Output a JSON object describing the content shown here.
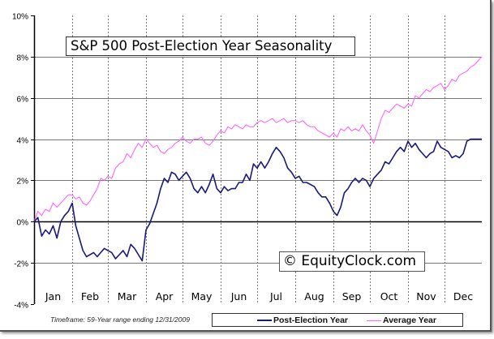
{
  "chart_data": {
    "type": "line",
    "title": "S&P 500 Post-Election Year Seasonality",
    "watermark": "© EquityClock.com",
    "footnote": "Timeframe: 59-Year range ending 12/31/2009",
    "xlabel": "",
    "ylabel": "",
    "ylim": [
      -4,
      10
    ],
    "y_ticks": [
      "10%",
      "8%",
      "6%",
      "4%",
      "2%",
      "0%",
      "-2%",
      "-4%"
    ],
    "y_tick_values": [
      10,
      8,
      6,
      4,
      2,
      0,
      -2,
      -4
    ],
    "categories": [
      "Jan",
      "Feb",
      "Mar",
      "Apr",
      "May",
      "Jun",
      "Jul",
      "Aug",
      "Sep",
      "Oct",
      "Nov",
      "Dec"
    ],
    "grid": {
      "horizontal": true,
      "vertical_dotted_month_separators": true
    },
    "legend_position": "bottom",
    "series": [
      {
        "name": "Post-Election Year",
        "color": "#1a1a7a",
        "x_month_fraction": [
          0,
          0.1,
          0.2,
          0.3,
          0.4,
          0.5,
          0.6,
          0.7,
          0.8,
          0.9,
          1.0,
          1.1,
          1.2,
          1.3,
          1.4,
          1.5,
          1.6,
          1.7,
          1.8,
          1.9,
          2.0,
          2.1,
          2.2,
          2.3,
          2.4,
          2.5,
          2.6,
          2.7,
          2.8,
          2.9,
          3.0,
          3.1,
          3.2,
          3.3,
          3.4,
          3.5,
          3.6,
          3.7,
          3.8,
          3.9,
          4.0,
          4.1,
          4.2,
          4.3,
          4.4,
          4.5,
          4.6,
          4.7,
          4.8,
          4.9,
          5.0,
          5.1,
          5.2,
          5.3,
          5.4,
          5.5,
          5.6,
          5.7,
          5.8,
          5.9,
          6.0,
          6.1,
          6.2,
          6.3,
          6.4,
          6.5,
          6.6,
          6.7,
          6.8,
          6.9,
          7.0,
          7.1,
          7.2,
          7.3,
          7.4,
          7.5,
          7.6,
          7.7,
          7.8,
          7.9,
          8.0,
          8.1,
          8.2,
          8.3,
          8.4,
          8.5,
          8.6,
          8.7,
          8.8,
          8.9,
          9.0,
          9.1,
          9.2,
          9.3,
          9.4,
          9.5,
          9.6,
          9.7,
          9.8,
          9.9,
          10.0,
          10.1,
          10.2,
          10.3,
          10.4,
          10.5,
          10.6,
          10.7,
          10.8,
          10.9,
          11.0,
          11.1,
          11.2,
          11.3,
          11.4,
          11.5,
          11.6,
          11.7,
          11.8,
          11.9,
          12.0
        ],
        "values": [
          0.0,
          0.2,
          -0.7,
          -0.4,
          -0.6,
          -0.2,
          -0.8,
          0.0,
          0.3,
          0.5,
          0.9,
          -0.2,
          -0.8,
          -1.4,
          -1.7,
          -1.6,
          -1.5,
          -1.7,
          -1.5,
          -1.3,
          -1.4,
          -1.5,
          -1.8,
          -1.6,
          -1.4,
          -1.7,
          -1.1,
          -1.3,
          -1.6,
          -1.9,
          -0.4,
          -0.1,
          0.4,
          0.9,
          1.6,
          2.1,
          1.9,
          2.4,
          2.3,
          2.0,
          2.2,
          2.4,
          2.1,
          1.6,
          1.4,
          1.7,
          1.4,
          1.8,
          2.3,
          1.6,
          1.4,
          1.7,
          1.5,
          1.6,
          1.6,
          1.9,
          1.9,
          2.3,
          2.0,
          2.8,
          2.6,
          2.9,
          2.6,
          2.9,
          3.3,
          3.6,
          3.4,
          3.1,
          2.6,
          2.4,
          2.1,
          2.2,
          1.9,
          1.9,
          1.8,
          1.7,
          1.4,
          1.2,
          1.2,
          0.9,
          0.5,
          0.3,
          0.7,
          1.4,
          1.6,
          1.9,
          2.1,
          1.9,
          2.1,
          2.0,
          1.7,
          2.1,
          2.3,
          2.5,
          2.9,
          2.8,
          3.1,
          3.4,
          3.6,
          3.4,
          3.9,
          3.6,
          3.8,
          3.5,
          3.3,
          3.1,
          3.3,
          3.4,
          3.9,
          3.6,
          3.5,
          3.4,
          3.1,
          3.2,
          3.1,
          3.3,
          3.9,
          4.0,
          4.0,
          4.0,
          4.0
        ]
      },
      {
        "name": "Average Year",
        "color": "#ff66ff",
        "x_month_fraction": [
          0,
          0.1,
          0.2,
          0.3,
          0.4,
          0.5,
          0.6,
          0.7,
          0.8,
          0.9,
          1.0,
          1.1,
          1.2,
          1.3,
          1.4,
          1.5,
          1.6,
          1.7,
          1.8,
          1.9,
          2.0,
          2.1,
          2.2,
          2.3,
          2.4,
          2.5,
          2.6,
          2.7,
          2.8,
          2.9,
          3.0,
          3.1,
          3.2,
          3.3,
          3.4,
          3.5,
          3.6,
          3.7,
          3.8,
          3.9,
          4.0,
          4.1,
          4.2,
          4.3,
          4.4,
          4.5,
          4.6,
          4.7,
          4.8,
          4.9,
          5.0,
          5.1,
          5.2,
          5.3,
          5.4,
          5.5,
          5.6,
          5.7,
          5.8,
          5.9,
          6.0,
          6.1,
          6.2,
          6.3,
          6.4,
          6.5,
          6.6,
          6.7,
          6.8,
          6.9,
          7.0,
          7.1,
          7.2,
          7.3,
          7.4,
          7.5,
          7.6,
          7.7,
          7.8,
          7.9,
          8.0,
          8.1,
          8.2,
          8.3,
          8.4,
          8.5,
          8.6,
          8.7,
          8.8,
          8.9,
          9.0,
          9.1,
          9.2,
          9.3,
          9.4,
          9.5,
          9.6,
          9.7,
          9.8,
          9.9,
          10.0,
          10.1,
          10.2,
          10.3,
          10.4,
          10.5,
          10.6,
          10.7,
          10.8,
          10.9,
          11.0,
          11.1,
          11.2,
          11.3,
          11.4,
          11.5,
          11.6,
          11.7,
          11.8,
          11.9,
          12.0
        ],
        "values": [
          0.0,
          0.5,
          0.3,
          0.6,
          0.5,
          0.9,
          0.7,
          0.9,
          1.1,
          1.3,
          1.3,
          1.1,
          1.2,
          0.9,
          0.8,
          1.0,
          1.3,
          1.6,
          2.1,
          2.0,
          2.2,
          2.1,
          2.6,
          2.8,
          2.9,
          3.3,
          3.1,
          3.5,
          3.8,
          3.6,
          4.0,
          3.8,
          3.6,
          3.7,
          3.4,
          3.3,
          3.5,
          3.6,
          3.8,
          3.9,
          4.1,
          3.9,
          3.8,
          4.0,
          4.0,
          4.1,
          3.8,
          3.7,
          3.9,
          4.2,
          4.4,
          4.3,
          4.6,
          4.5,
          4.7,
          4.6,
          4.5,
          4.7,
          4.6,
          4.6,
          4.8,
          4.9,
          4.8,
          4.9,
          5.0,
          4.8,
          4.9,
          5.0,
          4.8,
          4.9,
          4.9,
          4.8,
          4.9,
          4.7,
          4.6,
          4.6,
          4.4,
          4.3,
          4.2,
          4.1,
          4.3,
          4.1,
          4.5,
          4.4,
          4.6,
          4.4,
          4.5,
          4.4,
          4.7,
          4.4,
          4.2,
          3.8,
          4.4,
          5.0,
          5.4,
          5.3,
          5.5,
          5.7,
          5.6,
          5.5,
          5.7,
          5.6,
          6.1,
          6.0,
          6.2,
          6.4,
          6.3,
          6.5,
          6.6,
          6.7,
          6.4,
          6.6,
          6.9,
          6.8,
          7.1,
          7.2,
          7.3,
          7.5,
          7.6,
          7.8,
          8.0
        ]
      }
    ]
  },
  "title": "S&P 500 Post-Election Year Seasonality",
  "watermark": "© EquityClock.com",
  "footnote": "Timeframe: 59-Year range ending 12/31/2009",
  "legend": {
    "items": [
      {
        "label": "Post-Election Year",
        "color": "#1a1a7a"
      },
      {
        "label": "Average Year",
        "color": "#ff66ff"
      }
    ]
  }
}
